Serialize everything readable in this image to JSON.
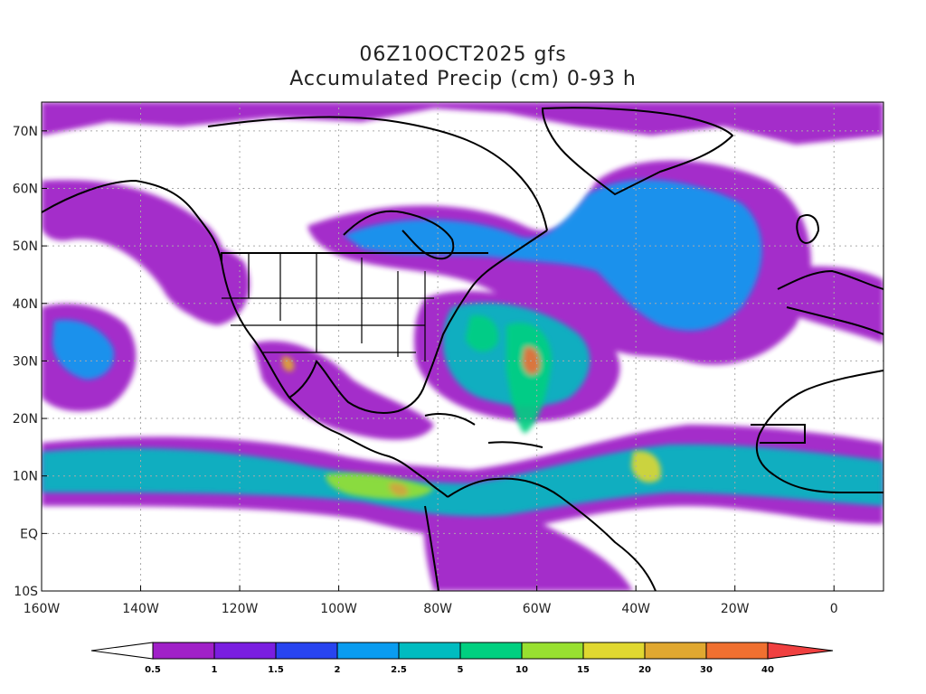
{
  "title": {
    "line1": "06Z10OCT2025 gfs",
    "line2": "Accumulated Precip (cm) 0-93 h"
  },
  "map": {
    "lon_range": [
      -160,
      10
    ],
    "lat_range": [
      -10,
      75
    ],
    "lat_ticks": [
      {
        "value": 70,
        "label": "70N"
      },
      {
        "value": 60,
        "label": "60N"
      },
      {
        "value": 50,
        "label": "50N"
      },
      {
        "value": 40,
        "label": "40N"
      },
      {
        "value": 30,
        "label": "30N"
      },
      {
        "value": 20,
        "label": "20N"
      },
      {
        "value": 10,
        "label": "10N"
      },
      {
        "value": 0,
        "label": "EQ"
      },
      {
        "value": -10,
        "label": "10S"
      }
    ],
    "lon_ticks": [
      {
        "value": -160,
        "label": "160W"
      },
      {
        "value": -140,
        "label": "140W"
      },
      {
        "value": -120,
        "label": "120W"
      },
      {
        "value": -100,
        "label": "100W"
      },
      {
        "value": -80,
        "label": "80W"
      },
      {
        "value": -60,
        "label": "60W"
      },
      {
        "value": -40,
        "label": "40W"
      },
      {
        "value": -20,
        "label": "20W"
      },
      {
        "value": 0,
        "label": "0"
      }
    ],
    "grid": "dotted",
    "colors": {
      "land_outline": "#000000",
      "grid": "#aaaaaa",
      "background": "#ffffff"
    }
  },
  "colorbar": {
    "levels": [
      "0.5",
      "1",
      "1.5",
      "2",
      "2.5",
      "5",
      "10",
      "15",
      "20",
      "30",
      "40"
    ],
    "colors": [
      "#ffffff",
      "#a020c8",
      "#7a1ee0",
      "#2844f0",
      "#0a9cf0",
      "#00bcc0",
      "#00d080",
      "#98e030",
      "#e0d830",
      "#e0a830",
      "#f07030",
      "#f04040"
    ]
  }
}
